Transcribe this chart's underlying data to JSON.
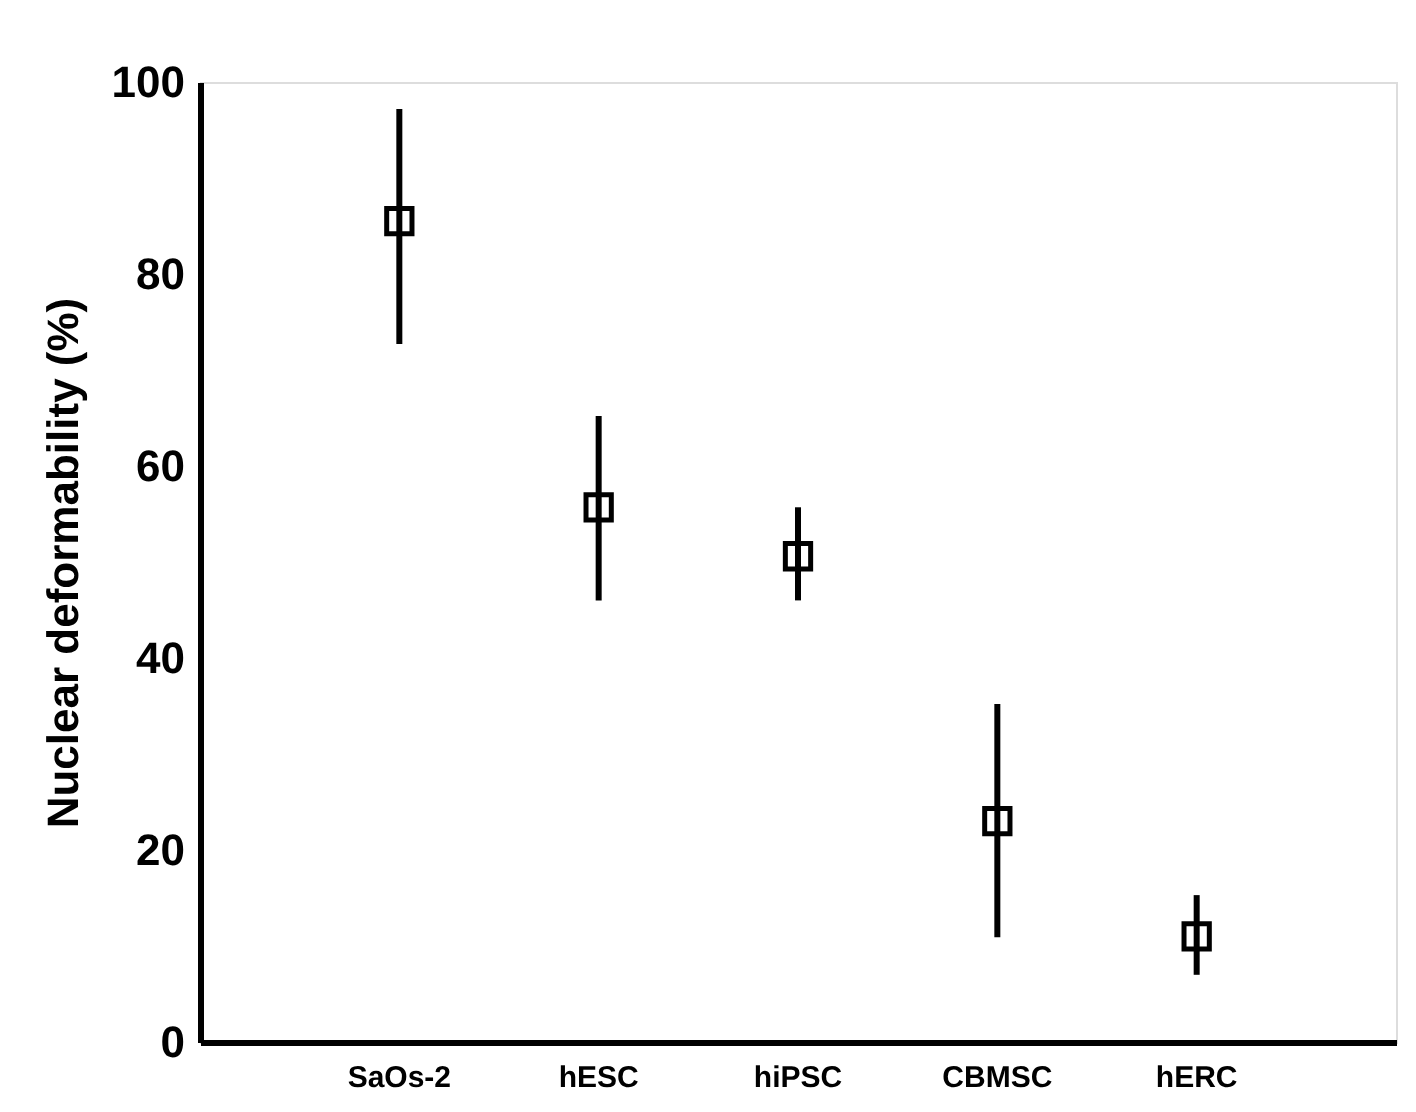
{
  "chart_data": {
    "type": "scatter",
    "ylabel": "Nuclear deformability (%)",
    "categories": [
      "SaOs-2",
      "hESC",
      "hiPSC",
      "CBMSC",
      "hERC"
    ],
    "values": [
      85.5,
      55.7,
      50.6,
      23,
      11
    ],
    "errors": [
      [
        72.7,
        97.2
      ],
      [
        46,
        65.2
      ],
      [
        46,
        55.7
      ],
      [
        10.9,
        35.2
      ],
      [
        7,
        15.3
      ]
    ],
    "color": "#000000",
    "marker": "square",
    "ylim": [
      0,
      100
    ],
    "yticks": [
      0,
      20,
      40,
      60,
      80,
      100
    ],
    "grid": false
  }
}
